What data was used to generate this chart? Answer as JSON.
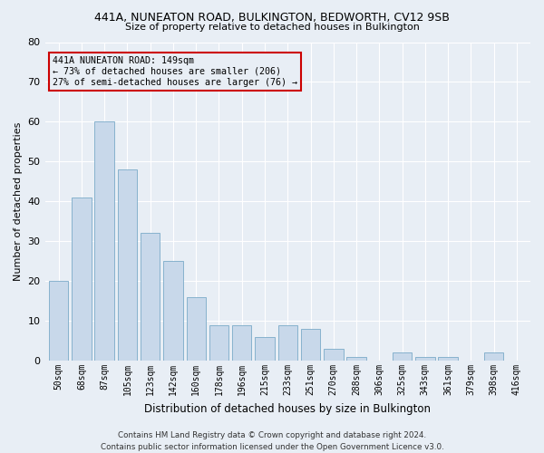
{
  "title": "441A, NUNEATON ROAD, BULKINGTON, BEDWORTH, CV12 9SB",
  "subtitle": "Size of property relative to detached houses in Bulkington",
  "xlabel": "Distribution of detached houses by size in Bulkington",
  "ylabel": "Number of detached properties",
  "categories": [
    "50sqm",
    "68sqm",
    "87sqm",
    "105sqm",
    "123sqm",
    "142sqm",
    "160sqm",
    "178sqm",
    "196sqm",
    "215sqm",
    "233sqm",
    "251sqm",
    "270sqm",
    "288sqm",
    "306sqm",
    "325sqm",
    "343sqm",
    "361sqm",
    "379sqm",
    "398sqm",
    "416sqm"
  ],
  "values": [
    20,
    41,
    60,
    48,
    32,
    25,
    16,
    9,
    9,
    6,
    9,
    8,
    3,
    1,
    0,
    2,
    1,
    1,
    0,
    2,
    0
  ],
  "bar_color": "#c8d8ea",
  "bar_edge_color": "#7aaac8",
  "annotation_line1": "441A NUNEATON ROAD: 149sqm",
  "annotation_line2": "← 73% of detached houses are smaller (206)",
  "annotation_line3": "27% of semi-detached houses are larger (76) →",
  "annotation_box_color": "#cc0000",
  "ylim": [
    0,
    80
  ],
  "yticks": [
    0,
    10,
    20,
    30,
    40,
    50,
    60,
    70,
    80
  ],
  "background_color": "#e8eef5",
  "grid_color": "#ffffff",
  "footer": "Contains HM Land Registry data © Crown copyright and database right 2024.\nContains public sector information licensed under the Open Government Licence v3.0."
}
